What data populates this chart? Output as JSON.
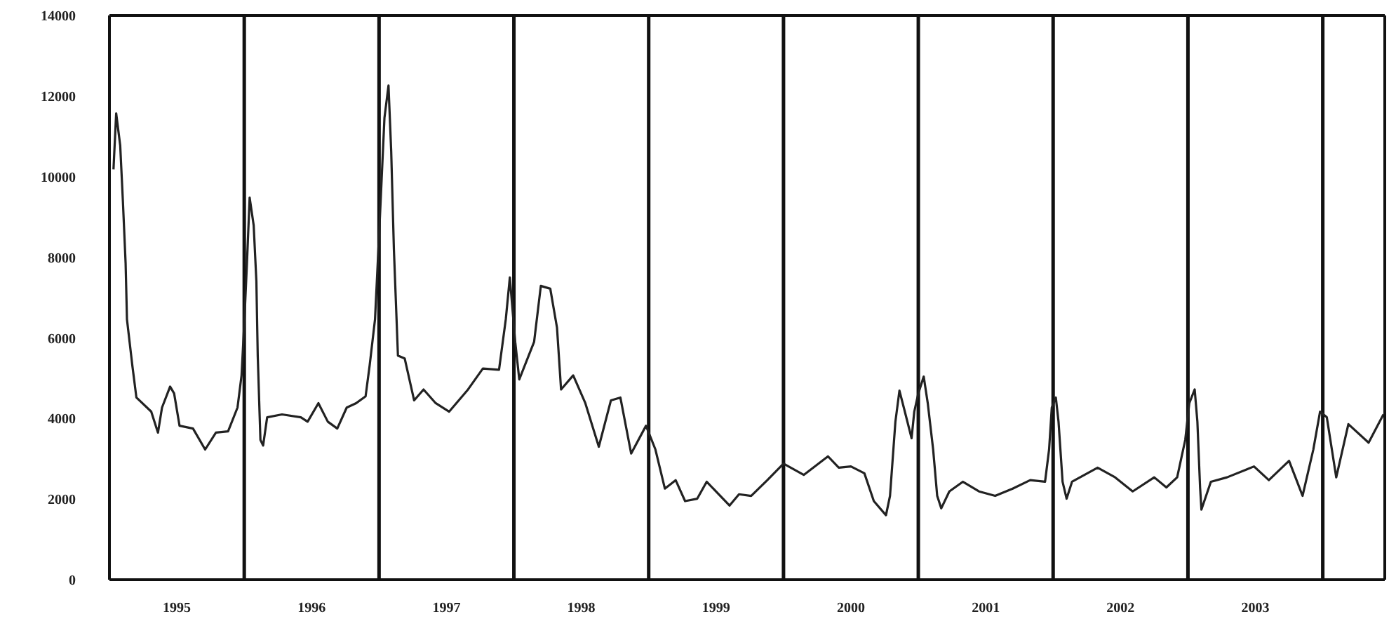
{
  "chart_data": {
    "type": "line",
    "x": [
      1995.03,
      1995.05,
      1995.08,
      1995.1,
      1995.12,
      1995.13,
      1995.17,
      1995.2,
      1995.31,
      1995.36,
      1995.39,
      1995.45,
      1995.48,
      1995.52,
      1995.62,
      1995.71,
      1995.79,
      1995.88,
      1995.95,
      1995.98,
      1996.0,
      1996.02,
      1996.04,
      1996.07,
      1996.09,
      1996.1,
      1996.12,
      1996.14,
      1996.17,
      1996.28,
      1996.42,
      1996.47,
      1996.55,
      1996.62,
      1996.69,
      1996.76,
      1996.83,
      1996.9,
      1996.93,
      1996.97,
      1997.0,
      1997.04,
      1997.07,
      1997.09,
      1997.11,
      1997.14,
      1997.19,
      1997.26,
      1997.33,
      1997.42,
      1997.52,
      1997.66,
      1997.77,
      1997.89,
      1997.94,
      1997.97,
      1998.01,
      1998.04,
      1998.15,
      1998.2,
      1998.27,
      1998.32,
      1998.35,
      1998.44,
      1998.53,
      1998.63,
      1998.72,
      1998.79,
      1998.87,
      1998.98,
      1999.05,
      1999.12,
      1999.2,
      1999.27,
      1999.36,
      1999.43,
      1999.6,
      1999.67,
      1999.76,
      1999.88,
      2000.0,
      2000.15,
      2000.33,
      2000.41,
      2000.5,
      2000.6,
      2000.67,
      2000.76,
      2000.79,
      2000.83,
      2000.86,
      2000.9,
      2000.95,
      2000.97,
      2001.0,
      2001.04,
      2001.07,
      2001.11,
      2001.14,
      2001.17,
      2001.23,
      2001.33,
      2001.45,
      2001.57,
      2001.7,
      2001.83,
      2001.94,
      2001.97,
      2001.99,
      2002.02,
      2002.04,
      2002.07,
      2002.1,
      2002.14,
      2002.33,
      2002.46,
      2002.59,
      2002.75,
      2002.84,
      2002.92,
      2002.98,
      2003.01,
      2003.05,
      2003.07,
      2003.09,
      2003.1,
      2003.17,
      2003.29,
      2003.49,
      2003.6,
      2003.75,
      2003.81,
      2003.85,
      2003.93,
      2003.98,
      2004.03,
      2004.1,
      2004.19,
      2004.34,
      2004.45
    ],
    "series": [
      {
        "color": "#222222",
        "values": [
          10180,
          11570,
          10770,
          9380,
          7850,
          6460,
          5310,
          4520,
          4170,
          3650,
          4270,
          4790,
          4620,
          3820,
          3750,
          3230,
          3650,
          3680,
          4270,
          5070,
          6360,
          7850,
          9480,
          8790,
          7400,
          5560,
          3470,
          3330,
          4030,
          4100,
          4030,
          3920,
          4380,
          3920,
          3750,
          4270,
          4380,
          4550,
          5310,
          6460,
          8540,
          11460,
          12260,
          10630,
          8200,
          5560,
          5490,
          4450,
          4720,
          4380,
          4170,
          4720,
          5240,
          5210,
          6460,
          7500,
          5900,
          4970,
          5900,
          7290,
          7220,
          6250,
          4720,
          5070,
          4380,
          3300,
          4450,
          4520,
          3130,
          3820,
          3230,
          2260,
          2470,
          1950,
          2010,
          2430,
          1840,
          2120,
          2080,
          2470,
          2880,
          2600,
          3060,
          2780,
          2810,
          2640,
          1950,
          1600,
          2080,
          3920,
          4690,
          4170,
          3510,
          4170,
          4620,
          5040,
          4380,
          3230,
          2080,
          1770,
          2190,
          2430,
          2190,
          2080,
          2260,
          2470,
          2430,
          3230,
          4270,
          4520,
          3920,
          2430,
          2010,
          2430,
          2780,
          2540,
          2190,
          2540,
          2290,
          2540,
          3470,
          4380,
          4720,
          3920,
          2290,
          1740,
          2430,
          2540,
          2810,
          2470,
          2950,
          2430,
          2080,
          3230,
          4170,
          4030,
          2540,
          3860,
          3400,
          4100
        ]
      }
    ],
    "xlim": [
      1995,
      2004.46
    ],
    "xticks": [
      {
        "value": 1995.5,
        "label": "1995"
      },
      {
        "value": 1996.5,
        "label": "1996"
      },
      {
        "value": 1997.5,
        "label": "1997"
      },
      {
        "value": 1998.5,
        "label": "1998"
      },
      {
        "value": 1999.5,
        "label": "1999"
      },
      {
        "value": 2000.5,
        "label": "2000"
      },
      {
        "value": 2001.5,
        "label": "2001"
      },
      {
        "value": 2002.5,
        "label": "2002"
      },
      {
        "value": 2003.5,
        "label": "2003"
      }
    ],
    "ylim": [
      0,
      14000
    ],
    "yticks": [
      0,
      2000,
      4000,
      6000,
      8000,
      10000,
      12000,
      14000
    ],
    "ref_lines": [
      {
        "axis": "x",
        "value": 1996,
        "color": "#111111"
      },
      {
        "axis": "x",
        "value": 1997,
        "color": "#111111"
      },
      {
        "axis": "x",
        "value": 1998,
        "color": "#111111"
      },
      {
        "axis": "x",
        "value": 1999,
        "color": "#111111"
      },
      {
        "axis": "x",
        "value": 2000,
        "color": "#111111"
      },
      {
        "axis": "x",
        "value": 2001,
        "color": "#111111"
      },
      {
        "axis": "x",
        "value": 2002,
        "color": "#111111"
      },
      {
        "axis": "x",
        "value": 2003,
        "color": "#111111"
      },
      {
        "axis": "x",
        "value": 2004,
        "color": "#111111"
      }
    ],
    "grid": false,
    "legend": false,
    "marker": "none",
    "line_style": "solid"
  }
}
